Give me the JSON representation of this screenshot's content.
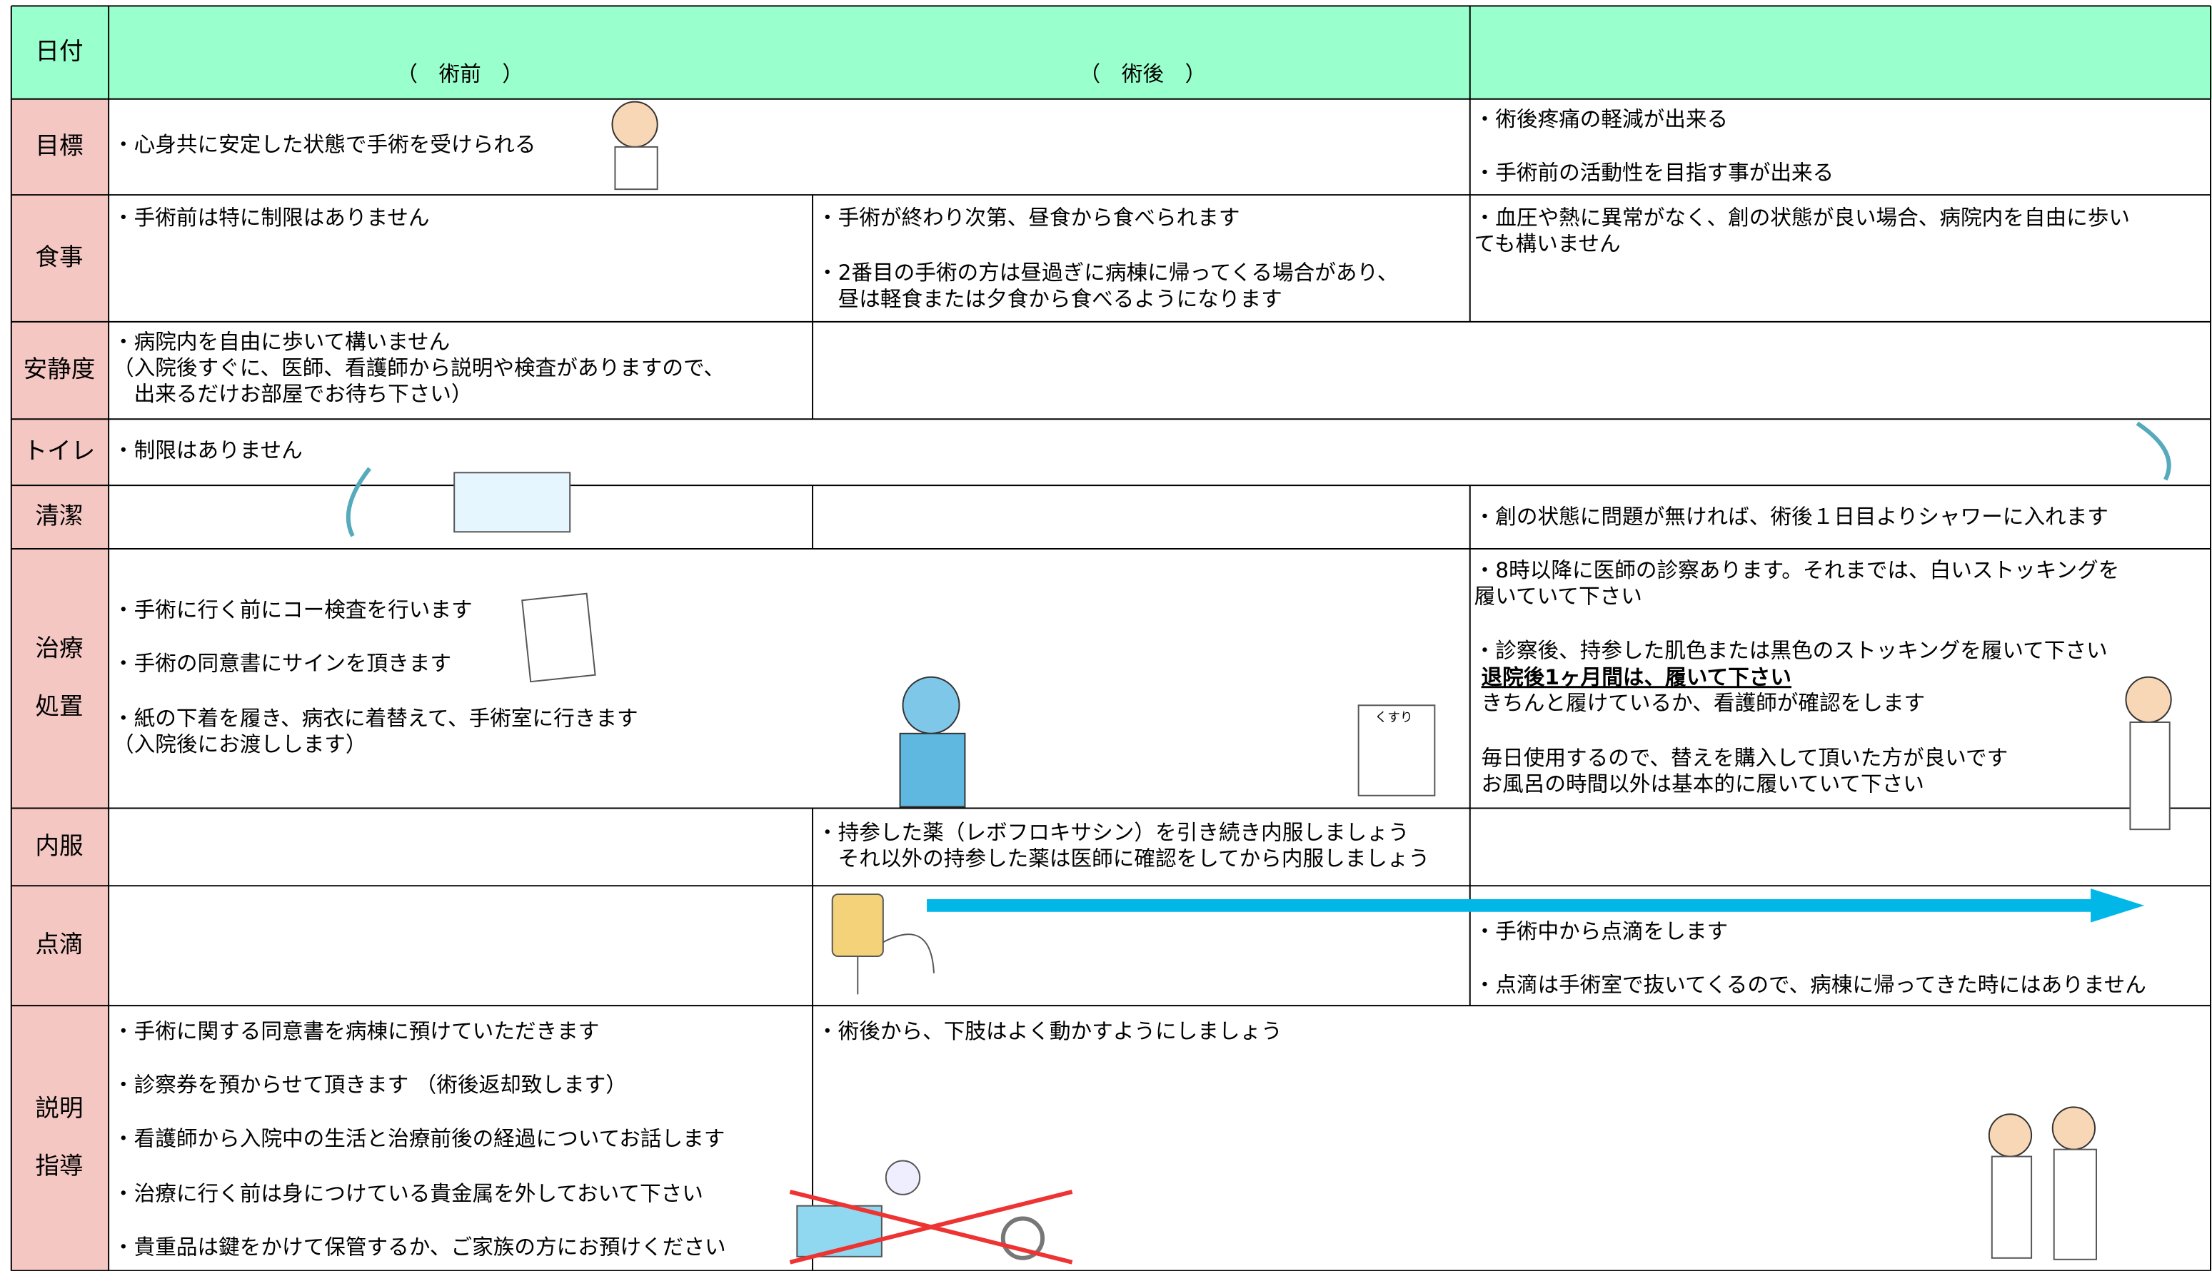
{
  "header": {
    "label": "日付",
    "columns": [
      "（　術前　）",
      "（　術後　）"
    ]
  },
  "rows": [
    {
      "label": [
        "目標"
      ],
      "blocks": [
        {
          "lines": [
            "・心身共に安定した状態で手術を受けられる"
          ]
        },
        {
          "lines": [
            "・術後疼痛の軽減が出来る"
          ]
        },
        {
          "lines": [
            "・手術前の活動性を目指す事が出来る"
          ]
        }
      ]
    },
    {
      "label": [
        "食事"
      ],
      "blocks": [
        {
          "lines": [
            "・手術前は特に制限はありません"
          ]
        },
        {
          "lines": [
            "・手術が終わり次第、昼食から食べられます"
          ]
        },
        {
          "lines": [
            "・2番目の手術の方は昼過ぎに病棟に帰ってくる場合があり、",
            "　昼は軽食または夕食から食べるようになります"
          ]
        },
        {
          "lines": [
            "・血圧や熱に異常がなく、創の状態が良い場合、病院内を自由に歩い",
            "ても構いません"
          ]
        }
      ]
    },
    {
      "label": [
        "安静度"
      ],
      "blocks": [
        {
          "lines": [
            "・病院内を自由に歩いて構いません",
            "（入院後すぐに、医師、看護師から説明や検査がありますので、",
            "　出来るだけお部屋でお待ち下さい）"
          ]
        }
      ]
    },
    {
      "label": [
        "トイレ"
      ],
      "blocks": [
        {
          "lines": [
            "・制限はありません"
          ]
        }
      ]
    },
    {
      "label": [
        "清潔"
      ],
      "blocks": [
        {
          "lines": [
            "・創の状態に問題が無ければ、術後１日目よりシャワーに入れます"
          ]
        }
      ]
    },
    {
      "label": [
        "治療",
        "処置"
      ],
      "blocks": [
        {
          "lines": [
            "・手術に行く前にコー検査を行います"
          ]
        },
        {
          "lines": [
            "・手術の同意書にサインを頂きます"
          ]
        },
        {
          "lines": [
            "・紙の下着を履き、病衣に着替えて、手術室に行きます",
            "（入院後にお渡しします）"
          ]
        },
        {
          "lines": [
            "・8時以降に医師の診察あります。それまでは、白いストッキングを",
            "履いていて下さい"
          ]
        },
        {
          "lines": [
            "・診察後、持参した肌色または黒色のストッキングを履いて下さい"
          ]
        },
        {
          "lines": [
            "退院後1ヶ月間は、履いて下さい"
          ],
          "emphasis": true
        },
        {
          "lines": [
            " きちんと履けているか、看護師が確認をします"
          ]
        },
        {
          "lines": [
            "毎日使用するので、替えを購入して頂いた方が良いです",
            "お風呂の時間以外は基本的に履いていて下さい"
          ]
        }
      ]
    },
    {
      "label": [
        "内服"
      ],
      "blocks": [
        {
          "lines": [
            "・持参した薬（レボフロキサシン）を引き続き内服しましょう",
            "　それ以外の持参した薬は医師に確認をしてから内服しましょう"
          ]
        }
      ]
    },
    {
      "label": [
        "点滴"
      ],
      "blocks": [
        {
          "lines": [
            "・手術中から点滴をします"
          ]
        },
        {
          "lines": [
            "・点滴は手術室で抜いてくるので、病棟に帰ってきた時にはありません"
          ]
        }
      ]
    },
    {
      "label": [
        "説明",
        "指導"
      ],
      "blocks": [
        {
          "lines": [
            "・手術に関する同意書を病棟に預けていただきます"
          ]
        },
        {
          "lines": [
            "・診察券を預からせて頂きます （術後返却致します）"
          ]
        },
        {
          "lines": [
            "・看護師から入院中の生活と治療前後の経過についてお話します"
          ]
        },
        {
          "lines": [
            "・治療に行く前は身につけている貴金属を外しておいて下さい"
          ]
        },
        {
          "lines": [
            "・貴重品は鍵をかけて保管するか、ご家族の方にお預けください"
          ]
        },
        {
          "lines": [
            "・術後から、下肢はよく動かすようにしましょう"
          ]
        }
      ]
    }
  ],
  "icon_text": "くすり"
}
